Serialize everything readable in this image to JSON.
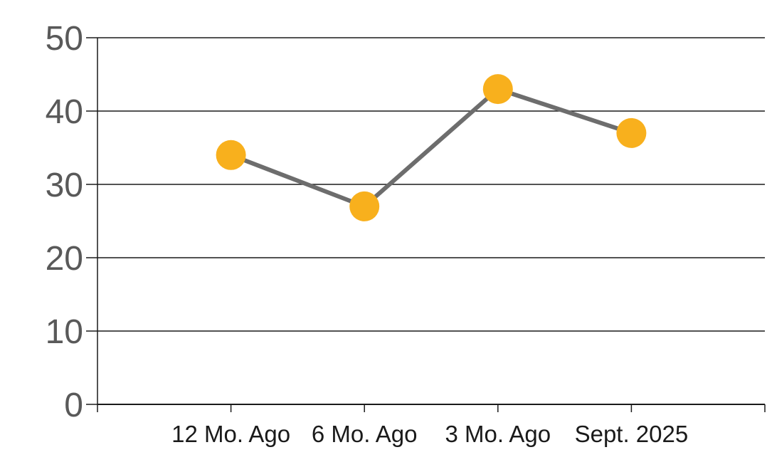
{
  "chart_data": {
    "type": "line",
    "categories": [
      "12 Mo. Ago",
      "6 Mo. Ago",
      "3 Mo. Ago",
      "Sept. 2025"
    ],
    "series": [
      {
        "name": "value",
        "values": [
          34,
          27,
          43,
          37
        ]
      }
    ],
    "title": "",
    "xlabel": "",
    "ylabel": "",
    "ylim": [
      0,
      50
    ],
    "yticks": [
      0,
      10,
      20,
      30,
      40,
      50
    ],
    "grid": true,
    "legend": false,
    "marker_style": "circle",
    "colors": {
      "marker": "#F8B01D",
      "line": "#6D6D6D",
      "grid": "#1A1A1A",
      "axis": "#1A1A1A",
      "ytick_label": "#595959",
      "xtick_label": "#1A1A1A",
      "background": "#FFFFFF"
    }
  }
}
